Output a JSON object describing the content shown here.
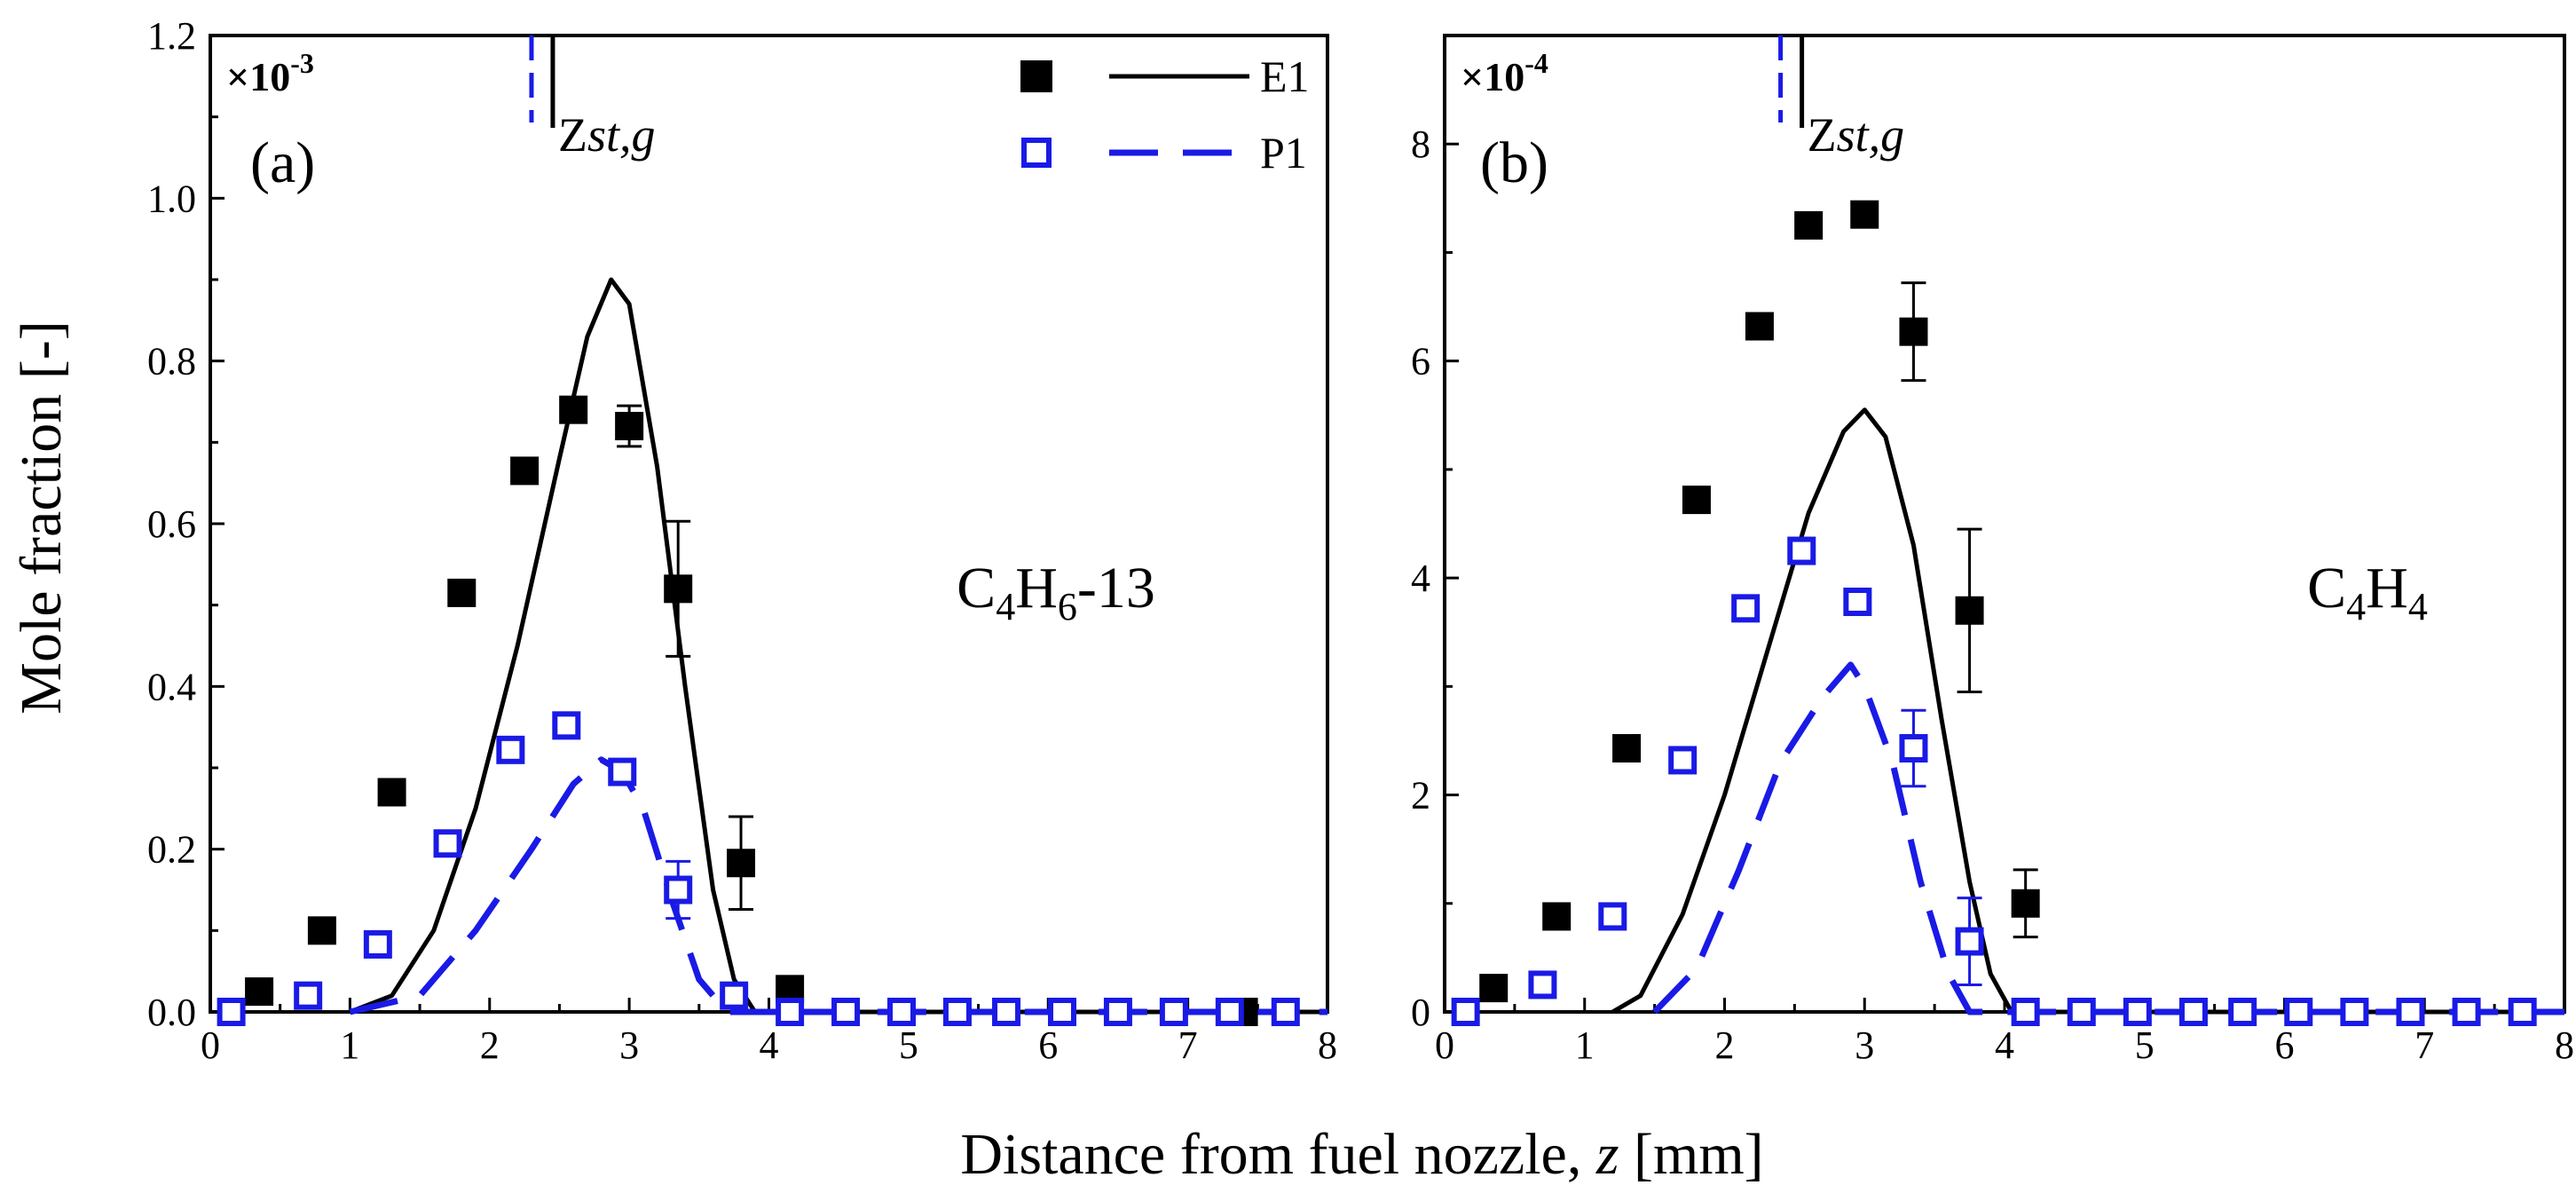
{
  "chart_data": [
    {
      "type": "scatter",
      "panel": "(a)",
      "species": {
        "base": [
          "C",
          "4",
          "H",
          "6",
          "-13"
        ]
      },
      "multiplier": {
        "base": "×10",
        "exp": "-3"
      },
      "zst_label": "Z",
      "zst_sub": "st,g",
      "zst_x": 2.3,
      "xlim": [
        0,
        8
      ],
      "ylim": [
        0,
        1.2
      ],
      "x_ticks": [
        "0",
        "1",
        "2",
        "3",
        "4",
        "5",
        "6",
        "7",
        "8"
      ],
      "y_ticks": [
        "0.0",
        "0.2",
        "0.4",
        "0.6",
        "0.8",
        "1.0",
        "1.2"
      ],
      "series": [
        {
          "name": "E1",
          "marker": "filled-square",
          "color": "#000000",
          "points": [
            {
              "x": 0.35,
              "y": 0.025
            },
            {
              "x": 0.8,
              "y": 0.1
            },
            {
              "x": 1.3,
              "y": 0.27
            },
            {
              "x": 1.8,
              "y": 0.515
            },
            {
              "x": 2.25,
              "y": 0.665
            },
            {
              "x": 2.6,
              "y": 0.74
            },
            {
              "x": 3.0,
              "y": 0.72,
              "err": 0.025
            },
            {
              "x": 3.35,
              "y": 0.52,
              "err": 0.083
            },
            {
              "x": 3.8,
              "y": 0.183,
              "err": 0.057
            },
            {
              "x": 4.15,
              "y": 0.028
            },
            {
              "x": 7.4,
              "y": 0.0
            }
          ],
          "model": [
            [
              1.0,
              0.0
            ],
            [
              1.3,
              0.02
            ],
            [
              1.6,
              0.1
            ],
            [
              1.9,
              0.25
            ],
            [
              2.2,
              0.45
            ],
            [
              2.5,
              0.68
            ],
            [
              2.7,
              0.83
            ],
            [
              2.87,
              0.9
            ],
            [
              3.0,
              0.87
            ],
            [
              3.2,
              0.67
            ],
            [
              3.4,
              0.4
            ],
            [
              3.6,
              0.15
            ],
            [
              3.75,
              0.04
            ],
            [
              3.9,
              0.0
            ],
            [
              8.0,
              0.0
            ]
          ]
        },
        {
          "name": "P1",
          "marker": "open-square",
          "color": "#1a1ae6",
          "points": [
            {
              "x": 0.15,
              "y": 0.0
            },
            {
              "x": 0.7,
              "y": 0.02
            },
            {
              "x": 1.2,
              "y": 0.083
            },
            {
              "x": 1.7,
              "y": 0.207
            },
            {
              "x": 2.15,
              "y": 0.322
            },
            {
              "x": 2.55,
              "y": 0.352
            },
            {
              "x": 2.95,
              "y": 0.295
            },
            {
              "x": 3.35,
              "y": 0.15,
              "err": 0.035
            },
            {
              "x": 3.75,
              "y": 0.02
            },
            {
              "x": 4.15,
              "y": 0.0
            },
            {
              "x": 4.55,
              "y": 0.0
            },
            {
              "x": 4.95,
              "y": 0.0
            },
            {
              "x": 5.35,
              "y": 0.0
            },
            {
              "x": 5.7,
              "y": 0.0
            },
            {
              "x": 6.1,
              "y": 0.0
            },
            {
              "x": 6.5,
              "y": 0.0
            },
            {
              "x": 6.9,
              "y": 0.0
            },
            {
              "x": 7.3,
              "y": 0.0
            },
            {
              "x": 7.7,
              "y": 0.0
            }
          ],
          "model": [
            [
              1.0,
              0.0
            ],
            [
              1.5,
              0.02
            ],
            [
              1.9,
              0.1
            ],
            [
              2.3,
              0.2
            ],
            [
              2.6,
              0.28
            ],
            [
              2.8,
              0.31
            ],
            [
              2.95,
              0.295
            ],
            [
              3.1,
              0.25
            ],
            [
              3.3,
              0.14
            ],
            [
              3.5,
              0.04
            ],
            [
              3.7,
              0.0
            ],
            [
              8.0,
              0.0
            ]
          ]
        }
      ],
      "legend": {
        "position": "top-right",
        "entries": [
          "E1",
          "P1"
        ]
      }
    },
    {
      "type": "scatter",
      "panel": "(b)",
      "species": {
        "base": [
          "C",
          "4",
          "H",
          "4"
        ]
      },
      "multiplier": {
        "base": "×10",
        "exp": "-4"
      },
      "zst_label": "Z",
      "zst_sub": "st,g",
      "zst_x": 2.4,
      "xlim": [
        0,
        8
      ],
      "ylim": [
        0,
        9
      ],
      "x_ticks": [
        "0",
        "1",
        "2",
        "3",
        "4",
        "5",
        "6",
        "7",
        "8"
      ],
      "y_ticks": [
        "0",
        "2",
        "4",
        "6",
        "8"
      ],
      "y_tick_values": [
        0,
        2,
        4,
        6,
        8
      ],
      "series": [
        {
          "name": "E1",
          "marker": "filled-square",
          "color": "#000000",
          "points": [
            {
              "x": 0.35,
              "y": 0.22
            },
            {
              "x": 0.8,
              "y": 0.88
            },
            {
              "x": 1.3,
              "y": 2.43
            },
            {
              "x": 1.8,
              "y": 4.72
            },
            {
              "x": 2.25,
              "y": 6.32
            },
            {
              "x": 2.6,
              "y": 7.25
            },
            {
              "x": 3.0,
              "y": 7.35
            },
            {
              "x": 3.35,
              "y": 6.27,
              "err": 0.45
            },
            {
              "x": 3.75,
              "y": 3.7,
              "err": 0.75
            },
            {
              "x": 4.15,
              "y": 1.0,
              "err": 0.31
            }
          ],
          "model": [
            [
              1.2,
              0.0
            ],
            [
              1.4,
              0.15
            ],
            [
              1.7,
              0.9
            ],
            [
              2.0,
              2.0
            ],
            [
              2.3,
              3.3
            ],
            [
              2.6,
              4.6
            ],
            [
              2.85,
              5.35
            ],
            [
              3.0,
              5.55
            ],
            [
              3.15,
              5.3
            ],
            [
              3.35,
              4.3
            ],
            [
              3.55,
              2.7
            ],
            [
              3.75,
              1.2
            ],
            [
              3.9,
              0.35
            ],
            [
              4.05,
              0.0
            ],
            [
              8.0,
              0.0
            ]
          ]
        },
        {
          "name": "P1",
          "marker": "open-square",
          "color": "#1a1ae6",
          "points": [
            {
              "x": 0.15,
              "y": 0.0
            },
            {
              "x": 0.7,
              "y": 0.25
            },
            {
              "x": 1.2,
              "y": 0.88
            },
            {
              "x": 1.7,
              "y": 2.32
            },
            {
              "x": 2.15,
              "y": 3.72
            },
            {
              "x": 2.55,
              "y": 4.25
            },
            {
              "x": 2.95,
              "y": 3.78
            },
            {
              "x": 3.35,
              "y": 2.43,
              "err": 0.35
            },
            {
              "x": 3.75,
              "y": 0.65,
              "err": 0.4
            },
            {
              "x": 4.15,
              "y": 0.0
            },
            {
              "x": 4.55,
              "y": 0.0
            },
            {
              "x": 4.95,
              "y": 0.0
            },
            {
              "x": 5.35,
              "y": 0.0
            },
            {
              "x": 5.7,
              "y": 0.0
            },
            {
              "x": 6.1,
              "y": 0.0
            },
            {
              "x": 6.5,
              "y": 0.0
            },
            {
              "x": 6.9,
              "y": 0.0
            },
            {
              "x": 7.3,
              "y": 0.0
            },
            {
              "x": 7.7,
              "y": 0.0
            }
          ],
          "model": [
            [
              1.5,
              0.0
            ],
            [
              1.8,
              0.4
            ],
            [
              2.1,
              1.3
            ],
            [
              2.4,
              2.3
            ],
            [
              2.7,
              2.9
            ],
            [
              2.9,
              3.2
            ],
            [
              3.0,
              3.0
            ],
            [
              3.2,
              2.3
            ],
            [
              3.4,
              1.2
            ],
            [
              3.6,
              0.35
            ],
            [
              3.75,
              0.0
            ],
            [
              8.0,
              0.0
            ]
          ]
        }
      ]
    }
  ],
  "ylabel": "Mole fraction [-]",
  "xlabel": {
    "text": "Distance from fuel nozzle, ",
    "var": "z",
    "unit": " [mm]"
  }
}
